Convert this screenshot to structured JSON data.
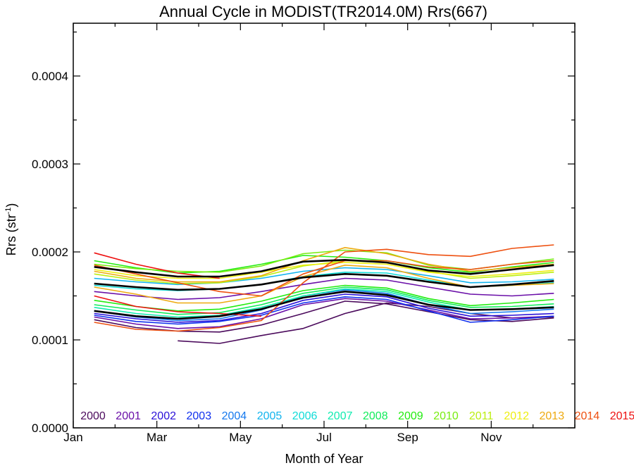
{
  "chart_data": {
    "type": "line",
    "title": "Annual Cycle in MODIST(TR2014.0M) Rrs(667)",
    "xlabel": "Month of Year",
    "ylabel_main": "Rrs (str",
    "ylabel_sup": "-1",
    "ylabel_close": ")",
    "xlim": [
      1,
      13
    ],
    "ylim": [
      0,
      0.00046
    ],
    "x_ticks": [
      {
        "value": 1,
        "label": "Jan"
      },
      {
        "value": 3,
        "label": "Mar"
      },
      {
        "value": 5,
        "label": "May"
      },
      {
        "value": 7,
        "label": "Jul"
      },
      {
        "value": 9,
        "label": "Sep"
      },
      {
        "value": 11,
        "label": "Nov"
      }
    ],
    "y_ticks": [
      {
        "value": 0,
        "label": "0.0000"
      },
      {
        "value": 0.0001,
        "label": "0.0001"
      },
      {
        "value": 0.0002,
        "label": "0.0002"
      },
      {
        "value": 0.0003,
        "label": "0.0003"
      },
      {
        "value": 0.0004,
        "label": "0.0004"
      }
    ],
    "x": [
      1.5,
      2.5,
      3.5,
      4.5,
      5.5,
      6.5,
      7.5,
      8.5,
      9.5,
      10.5,
      11.5,
      12.5
    ],
    "legend": [
      {
        "label": "2000",
        "color": "#4b0a5c"
      },
      {
        "label": "2001",
        "color": "#6a0fa8"
      },
      {
        "label": "2002",
        "color": "#2a10d8"
      },
      {
        "label": "2003",
        "color": "#1030ee"
      },
      {
        "label": "2004",
        "color": "#1478ee"
      },
      {
        "label": "2005",
        "color": "#12b4ee"
      },
      {
        "label": "2006",
        "color": "#10dcd8"
      },
      {
        "label": "2007",
        "color": "#10ecb0"
      },
      {
        "label": "2008",
        "color": "#10ec5a"
      },
      {
        "label": "2009",
        "color": "#22ec10"
      },
      {
        "label": "2010",
        "color": "#78ec10"
      },
      {
        "label": "2011",
        "color": "#bcee10"
      },
      {
        "label": "2012",
        "color": "#eeee10"
      },
      {
        "label": "2013",
        "color": "#eeaa10"
      },
      {
        "label": "2014",
        "color": "#ee5010"
      },
      {
        "label": "2015",
        "color": "#ee1010"
      }
    ],
    "series": [
      {
        "color": "#4b0a5c",
        "values": [
          null,
          null,
          9.9e-05,
          9.6e-05,
          0.000105,
          0.000113,
          0.00013,
          0.000142,
          0.000138,
          0.00013,
          0.000125,
          0.000126
        ]
      },
      {
        "color": "#4b0a5c",
        "values": [
          0.000123,
          0.000114,
          0.00011,
          0.000109,
          0.000117,
          0.00013,
          0.000144,
          0.000141,
          0.000132,
          0.000123,
          0.000121,
          0.000125
        ]
      },
      {
        "color": "#6a0fa8",
        "values": [
          0.000126,
          0.000118,
          0.000113,
          0.000115,
          0.000124,
          0.00014,
          0.000147,
          0.000144,
          0.000134,
          0.000124,
          0.000125,
          0.000127
        ]
      },
      {
        "color": "#6a0fa8",
        "values": [
          0.000155,
          0.00015,
          0.000146,
          0.000148,
          0.000155,
          0.000163,
          0.00017,
          0.000168,
          0.00016,
          0.000152,
          0.00015,
          0.000153
        ]
      },
      {
        "color": "#2a10d8",
        "values": [
          0.00013,
          0.000124,
          0.00012,
          0.000122,
          0.00013,
          0.000145,
          0.000152,
          0.000149,
          0.000136,
          0.000127,
          0.000128,
          0.00013
        ]
      },
      {
        "color": "#1030ee",
        "values": [
          0.000128,
          0.000121,
          0.000118,
          0.000121,
          0.000128,
          0.000142,
          0.000149,
          0.000146,
          0.000133,
          0.00012,
          0.000123,
          0.000127
        ]
      },
      {
        "color": "#1478ee",
        "values": [
          0.000133,
          0.000126,
          0.000122,
          0.000124,
          0.000134,
          0.00015,
          0.000157,
          0.000153,
          0.00014,
          0.00013,
          0.000132,
          0.000135
        ]
      },
      {
        "color": "#12b4ee",
        "values": [
          0.00017,
          0.000166,
          0.000163,
          0.000165,
          0.00017,
          0.000178,
          0.000182,
          0.00018,
          0.000173,
          0.000165,
          0.000166,
          0.000169
        ]
      },
      {
        "color": "#10dcd8",
        "values": [
          0.000162,
          0.000158,
          0.000156,
          0.000158,
          0.000163,
          0.000172,
          0.000177,
          0.000176,
          0.000168,
          0.00016,
          0.000162,
          0.000165
        ]
      },
      {
        "color": "#10ecb0",
        "values": [
          0.000137,
          0.00013,
          0.000126,
          0.000128,
          0.000137,
          0.00015,
          0.000158,
          0.000155,
          0.000143,
          0.000134,
          0.000135,
          0.000138
        ]
      },
      {
        "color": "#10ec5a",
        "values": [
          0.00014,
          0.000134,
          0.000129,
          0.000131,
          0.00014,
          0.000153,
          0.00016,
          0.000157,
          0.000145,
          0.000137,
          0.000138,
          0.000141
        ]
      },
      {
        "color": "#22ec10",
        "values": [
          0.000145,
          0.000138,
          0.000133,
          0.000135,
          0.000144,
          0.000156,
          0.000162,
          0.000159,
          0.000147,
          0.000139,
          0.000142,
          0.000146
        ]
      },
      {
        "color": "#22ec10",
        "values": [
          0.00019,
          0.000182,
          0.000176,
          0.000178,
          0.000186,
          0.000196,
          0.000194,
          0.00019,
          0.000182,
          0.000177,
          0.000183,
          0.000188
        ]
      },
      {
        "color": "#78ec10",
        "values": [
          0.000186,
          0.000181,
          0.000178,
          0.000177,
          0.000184,
          0.000198,
          0.000202,
          0.000199,
          0.000185,
          0.00018,
          0.000186,
          0.000192
        ]
      },
      {
        "color": "#bcee10",
        "values": [
          0.000175,
          0.000168,
          0.000164,
          0.000165,
          0.000172,
          0.000184,
          0.00019,
          0.000188,
          0.000178,
          0.00017,
          0.000173,
          0.000177
        ]
      },
      {
        "color": "#eeee10",
        "values": [
          0.00018,
          0.000173,
          0.00017,
          0.00017,
          0.000177,
          0.000185,
          0.000188,
          0.000186,
          0.000177,
          0.000172,
          0.000175,
          0.000179
        ]
      },
      {
        "color": "#eeaa10",
        "values": [
          0.000178,
          0.00017,
          0.000166,
          0.000166,
          0.000173,
          0.00019,
          0.000205,
          0.000198,
          0.000186,
          0.000178,
          0.000182,
          0.000186
        ]
      },
      {
        "color": "#eeaa10",
        "values": [
          0.00016,
          0.000152,
          0.000142,
          0.000142,
          0.00015,
          0.000172,
          0.000185,
          0.000182,
          0.00017,
          0.00016,
          0.000162,
          0.000164
        ]
      },
      {
        "color": "#ee5010",
        "values": [
          0.00012,
          0.000112,
          0.00011,
          0.000114,
          0.000122,
          0.000165,
          0.0002,
          0.000203,
          0.000197,
          0.000195,
          0.000204,
          0.000208
        ]
      },
      {
        "color": "#ee5010",
        "values": [
          0.000185,
          0.000175,
          0.000165,
          0.000155,
          0.00015,
          0.000175,
          0.00019,
          0.00019,
          0.000183,
          0.00018,
          0.000186,
          0.00019
        ]
      },
      {
        "color": "#ee1010",
        "values": [
          0.000199,
          0.000186,
          0.000176,
          0.00017,
          null,
          null,
          null,
          null,
          null,
          null,
          null,
          null
        ]
      },
      {
        "color": "#ee1010",
        "values": [
          0.00015,
          0.000138,
          0.000132,
          0.00013,
          0.000127,
          null,
          null,
          null,
          null,
          null,
          null,
          null
        ]
      },
      {
        "color": "#000000",
        "width": 2.6,
        "values": [
          0.000183,
          0.000177,
          0.000172,
          0.000172,
          0.000178,
          0.000189,
          0.000191,
          0.000188,
          0.000179,
          0.000175,
          0.00018,
          0.000185
        ]
      },
      {
        "color": "#000000",
        "width": 2.6,
        "values": [
          0.000164,
          0.00016,
          0.000157,
          0.000158,
          0.000163,
          0.000171,
          0.000175,
          0.000173,
          0.000166,
          0.00016,
          0.000163,
          0.000167
        ]
      },
      {
        "color": "#000000",
        "width": 2.6,
        "values": [
          0.000133,
          0.000127,
          0.000124,
          0.000127,
          0.000135,
          0.000148,
          0.000155,
          0.000151,
          0.00014,
          0.000134,
          0.000135,
          0.000137
        ]
      }
    ]
  }
}
